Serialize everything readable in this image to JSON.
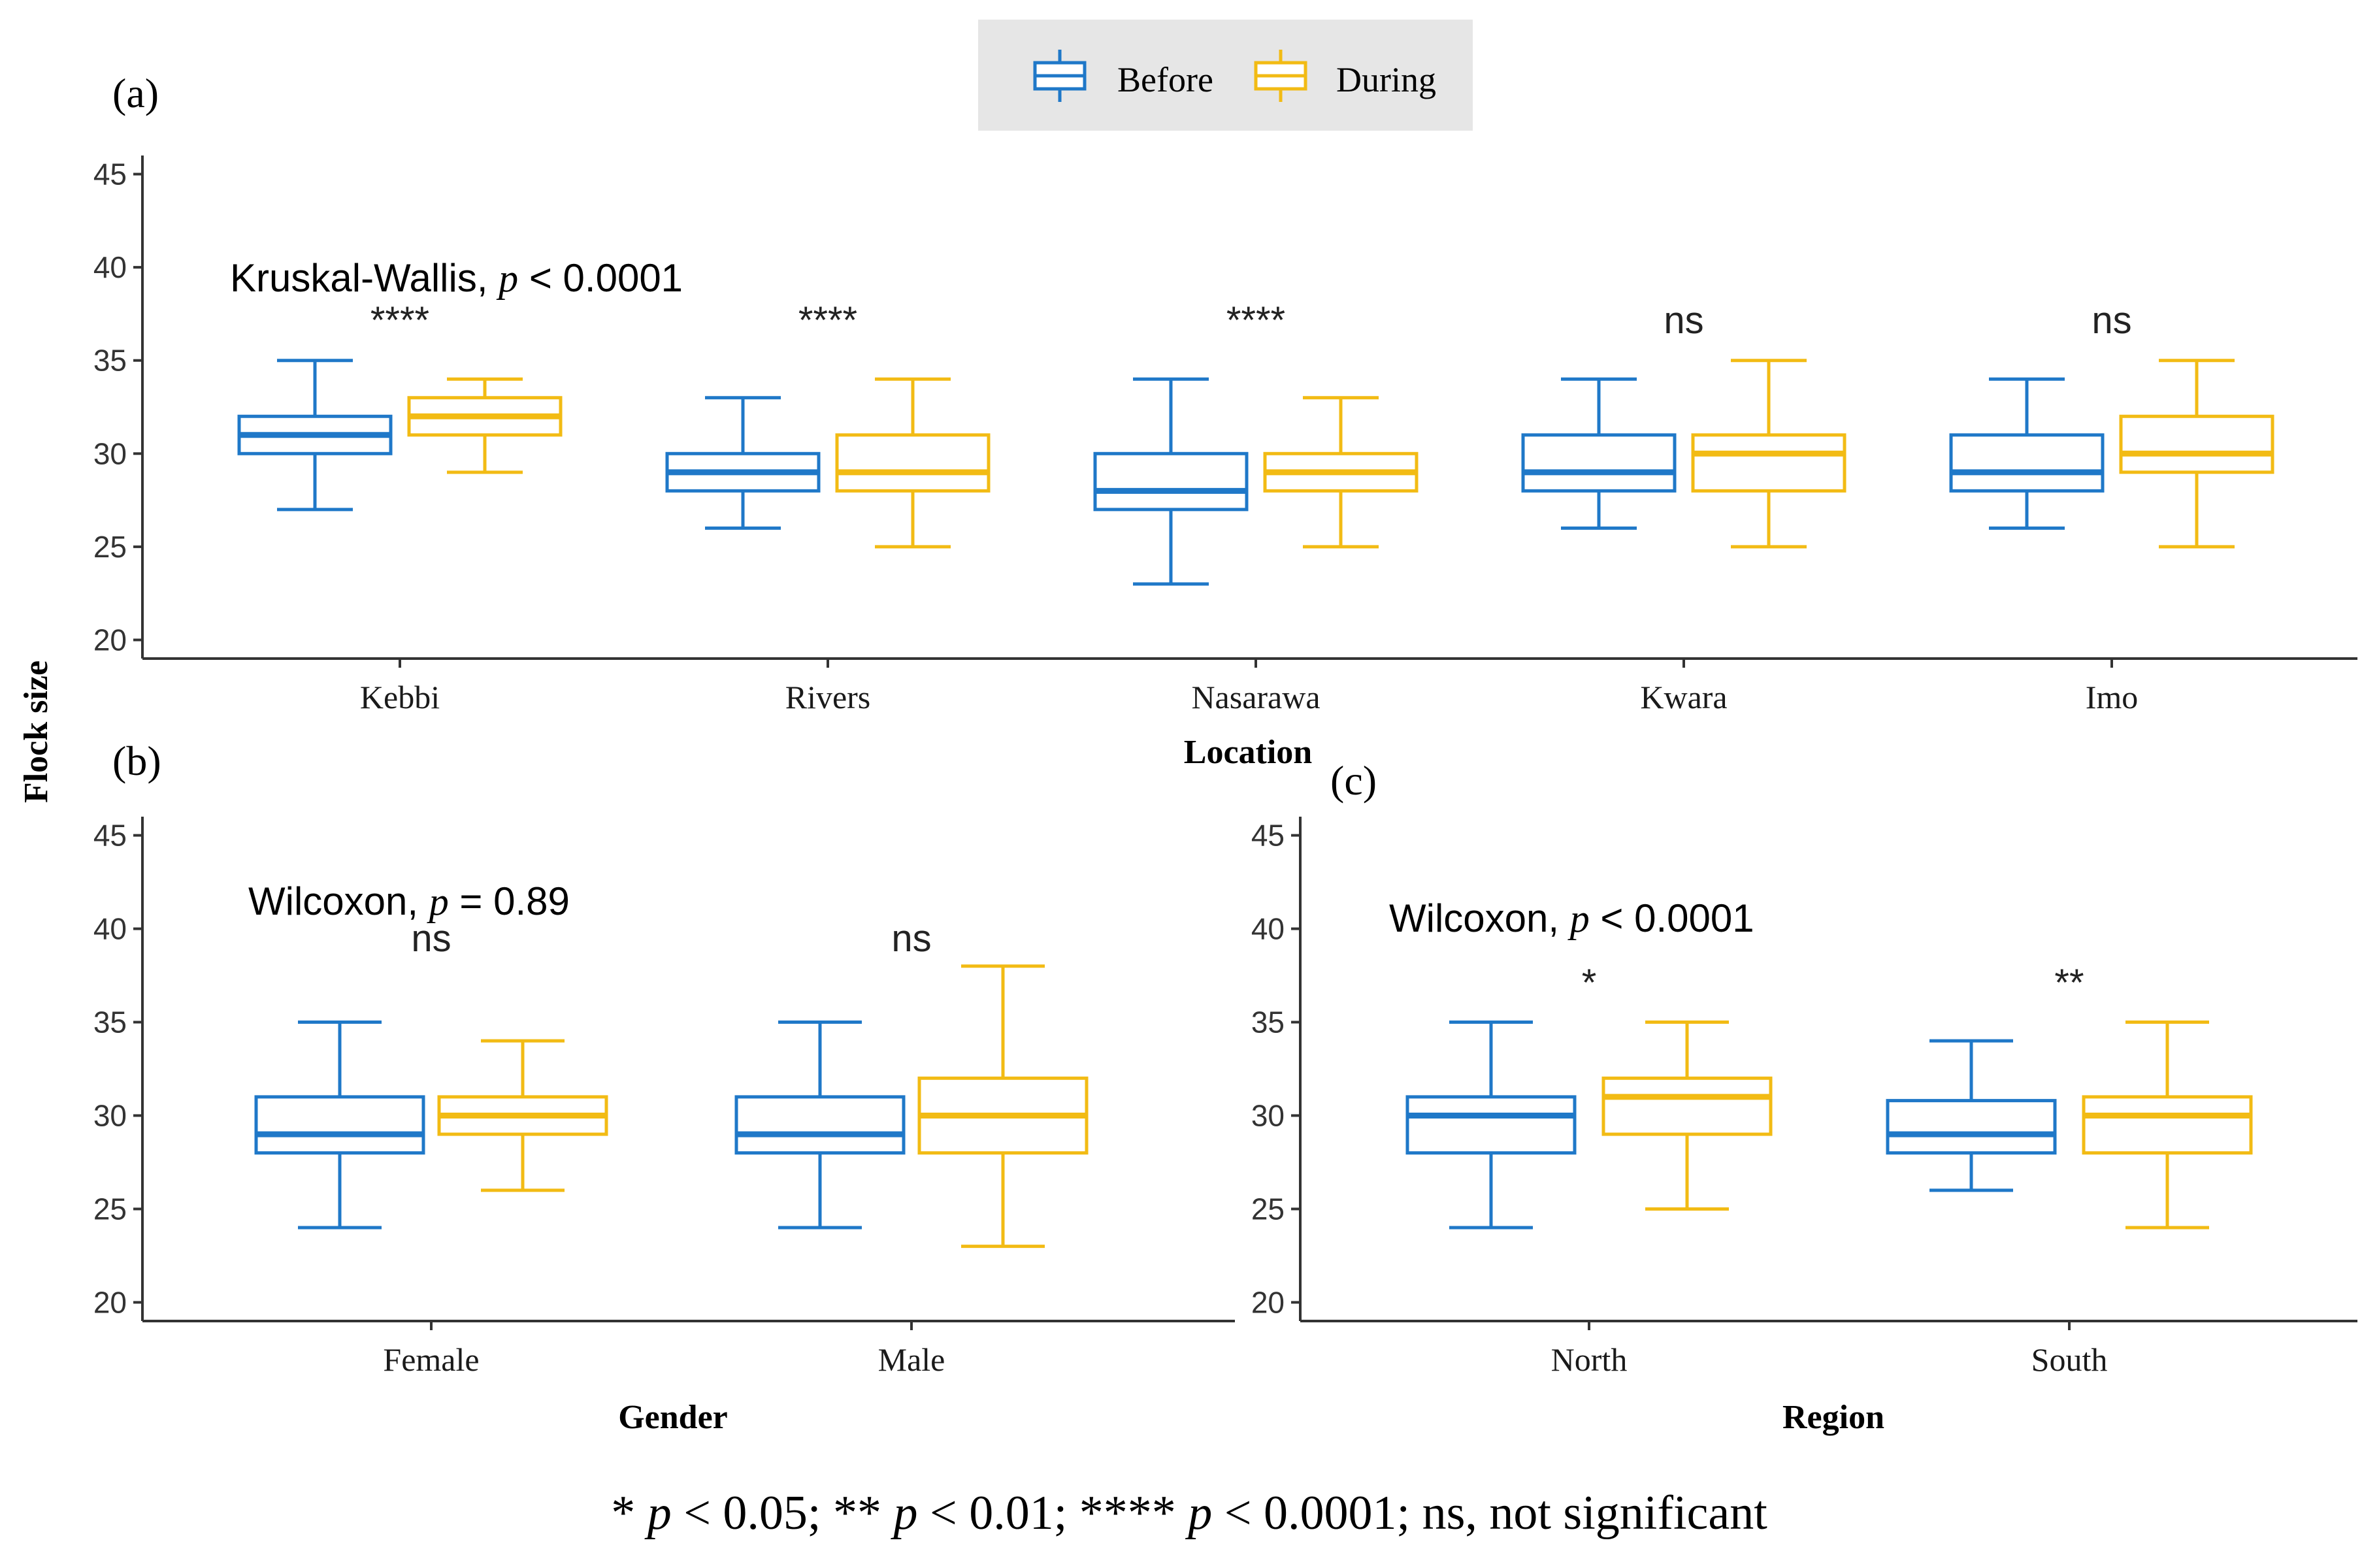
{
  "legend": {
    "items": [
      {
        "label": "Before",
        "color": "#1f78c8"
      },
      {
        "label": "During",
        "color": "#f2bb14"
      }
    ]
  },
  "y_axis_title": "Flock size",
  "footnote": {
    "s1": "* ",
    "p1": "p",
    "s2": " < 0.05; ** ",
    "p2": "p",
    "s3": " < 0.01; **** ",
    "p3": "p",
    "s4": " < 0.0001; ns, not significant"
  },
  "chart_data": [
    {
      "type": "box",
      "panel_label": "(a)",
      "xlabel": "Location",
      "ylabel": "Flock size",
      "ylim": [
        19,
        46
      ],
      "yticks": [
        20,
        25,
        30,
        35,
        40,
        45
      ],
      "test": {
        "name": "Kruskal-Wallis, ",
        "p": "p",
        "rest": " < 0.0001"
      },
      "categories": [
        "Kebbi",
        "Rivers",
        "Nasarawa",
        "Kwara",
        "Imo"
      ],
      "significance": [
        "****",
        "****",
        "****",
        "ns",
        "ns"
      ],
      "series": [
        {
          "name": "Before",
          "boxes": [
            {
              "min": 27,
              "q1": 30,
              "median": 31,
              "q3": 32,
              "max": 35
            },
            {
              "min": 26,
              "q1": 28,
              "median": 29,
              "q3": 30,
              "max": 33
            },
            {
              "min": 23,
              "q1": 27,
              "median": 28,
              "q3": 30,
              "max": 34
            },
            {
              "min": 26,
              "q1": 28,
              "median": 29,
              "q3": 31,
              "max": 34
            },
            {
              "min": 26,
              "q1": 28,
              "median": 29,
              "q3": 31,
              "max": 34
            }
          ]
        },
        {
          "name": "During",
          "boxes": [
            {
              "min": 29,
              "q1": 31,
              "median": 32,
              "q3": 33,
              "max": 34
            },
            {
              "min": 25,
              "q1": 28,
              "median": 29,
              "q3": 31,
              "max": 34
            },
            {
              "min": 25,
              "q1": 28,
              "median": 29,
              "q3": 30,
              "max": 33
            },
            {
              "min": 25,
              "q1": 28,
              "median": 30,
              "q3": 31,
              "max": 35
            },
            {
              "min": 25,
              "q1": 29,
              "median": 30,
              "q3": 32,
              "max": 35
            }
          ]
        }
      ]
    },
    {
      "type": "box",
      "panel_label": "(b)",
      "xlabel": "Gender",
      "ylabel": "Flock size",
      "ylim": [
        19,
        46
      ],
      "yticks": [
        20,
        25,
        30,
        35,
        40,
        45
      ],
      "test": {
        "name": "Wilcoxon, ",
        "p": "p",
        "rest": " = 0.89"
      },
      "categories": [
        "Female",
        "Male"
      ],
      "significance": [
        "ns",
        "ns"
      ],
      "series": [
        {
          "name": "Before",
          "boxes": [
            {
              "min": 24,
              "q1": 28,
              "median": 29,
              "q3": 31,
              "max": 35
            },
            {
              "min": 24,
              "q1": 28,
              "median": 29,
              "q3": 31,
              "max": 35
            }
          ]
        },
        {
          "name": "During",
          "boxes": [
            {
              "min": 26,
              "q1": 29,
              "median": 30,
              "q3": 31,
              "max": 34
            },
            {
              "min": 23,
              "q1": 28,
              "median": 30,
              "q3": 32,
              "max": 38
            }
          ]
        }
      ]
    },
    {
      "type": "box",
      "panel_label": "(c)",
      "xlabel": "Region",
      "ylabel": "Flock size",
      "ylim": [
        19,
        46
      ],
      "yticks": [
        20,
        25,
        30,
        35,
        40,
        45
      ],
      "test": {
        "name": "Wilcoxon, ",
        "p": "p",
        "rest": " < 0.0001"
      },
      "categories": [
        "North",
        "South"
      ],
      "significance": [
        "*",
        "**"
      ],
      "series": [
        {
          "name": "Before",
          "boxes": [
            {
              "min": 24,
              "q1": 28,
              "median": 30,
              "q3": 31,
              "max": 35
            },
            {
              "min": 26,
              "q1": 28,
              "median": 29,
              "q3": 30.8,
              "max": 34
            }
          ]
        },
        {
          "name": "During",
          "boxes": [
            {
              "min": 25,
              "q1": 29,
              "median": 31,
              "q3": 32,
              "max": 35
            },
            {
              "min": 24,
              "q1": 28,
              "median": 30,
              "q3": 31,
              "max": 35
            }
          ]
        }
      ]
    }
  ]
}
